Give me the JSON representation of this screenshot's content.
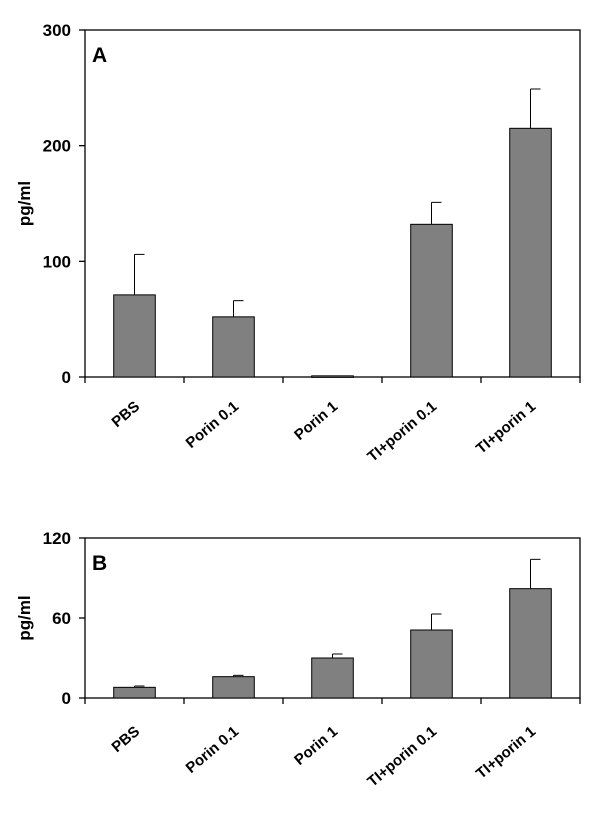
{
  "chart_data": [
    {
      "type": "bar",
      "panel_label": "A",
      "ylabel": "pg/ml",
      "ylim": [
        0,
        300
      ],
      "yticks": [
        0,
        100,
        200,
        300
      ],
      "categories": [
        "PBS",
        "Porin 0.1",
        "Porin 1",
        "TI+porin 0.1",
        "TI+porin 1"
      ],
      "values": [
        71,
        52,
        1,
        132,
        215
      ],
      "error": [
        35,
        14,
        0,
        19,
        34
      ],
      "bar_color": "#808080",
      "grid": false
    },
    {
      "type": "bar",
      "panel_label": "B",
      "ylabel": "pg/ml",
      "ylim": [
        0,
        120
      ],
      "yticks": [
        0,
        60,
        120
      ],
      "categories": [
        "PBS",
        "Porin 0.1",
        "Porin 1",
        "TI+porin 0.1",
        "TI+porin 1"
      ],
      "values": [
        8,
        16,
        30,
        51,
        82
      ],
      "error": [
        1,
        1,
        3,
        12,
        22
      ],
      "bar_color": "#808080",
      "grid": false
    }
  ]
}
